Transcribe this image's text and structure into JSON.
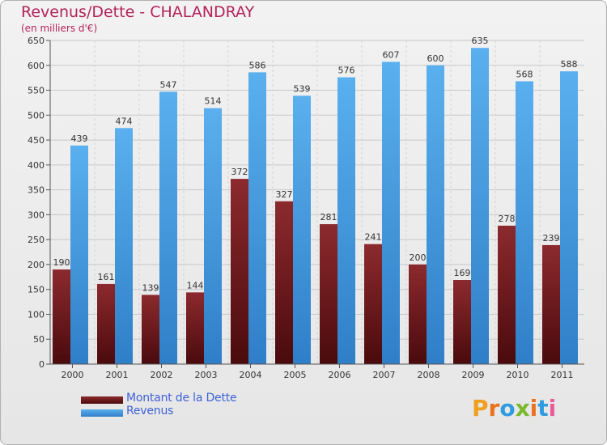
{
  "title": "Revenus/Dette - CHALANDRAY",
  "subtitle": "(en milliers d'€)",
  "colors": {
    "dette": "#7a1f24",
    "revenus": "#4ea6e6",
    "title": "#b5225a",
    "legend_text": "#3d63d8"
  },
  "legend": {
    "items": [
      {
        "label": "Montant de la Dette"
      },
      {
        "label": "Revenus"
      }
    ]
  },
  "logo": {
    "text": "Proxiti"
  },
  "chart_data": {
    "type": "bar",
    "title": "Revenus/Dette - CHALANDRAY",
    "subtitle": "(en milliers d'€)",
    "categories": [
      "2000",
      "2001",
      "2002",
      "2003",
      "2004",
      "2005",
      "2006",
      "2007",
      "2008",
      "2009",
      "2010",
      "2011"
    ],
    "series": [
      {
        "name": "Montant de la Dette",
        "values": [
          190,
          161,
          139,
          144,
          372,
          327,
          281,
          241,
          200,
          169,
          278,
          239
        ]
      },
      {
        "name": "Revenus",
        "values": [
          439,
          474,
          547,
          514,
          586,
          539,
          576,
          607,
          600,
          635,
          568,
          588
        ]
      }
    ],
    "ylim": [
      0,
      650
    ],
    "yticks": [
      0,
      50,
      100,
      150,
      200,
      250,
      300,
      350,
      400,
      450,
      500,
      550,
      600,
      650
    ],
    "grid": true,
    "legend_position": "bottom-left"
  }
}
